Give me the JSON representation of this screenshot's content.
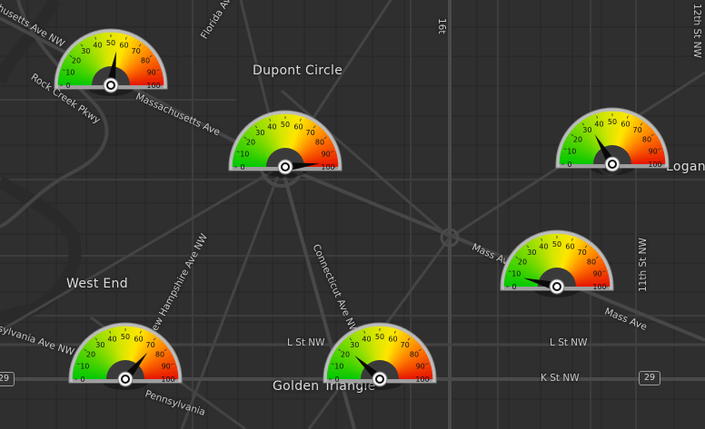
{
  "map": {
    "place_labels": [
      {
        "name": "place-dupont-circle",
        "text": "Dupont Circle"
      },
      {
        "name": "place-west-end",
        "text": "West End"
      },
      {
        "name": "place-golden-triangle",
        "text": "Golden Triangle"
      },
      {
        "name": "place-logan",
        "text": "Logan"
      }
    ],
    "street_labels": [
      {
        "name": "street-massachusetts-ave-nw-west",
        "text": "husetts Ave NW"
      },
      {
        "name": "street-rock-creek-pkwy",
        "text": "Rock Creek Pkwy"
      },
      {
        "name": "street-massachusetts-ave",
        "text": "Massachusetts Ave"
      },
      {
        "name": "street-florida-ave",
        "text": "Florida Ave"
      },
      {
        "name": "street-16th",
        "text": "16t"
      },
      {
        "name": "street-new-hampshire-ave-nw",
        "text": "New Hampshire Ave NW"
      },
      {
        "name": "street-connecticut-ave-nw",
        "text": "Connecticut Ave NW"
      },
      {
        "name": "street-pennsylvania-ave-nw-west",
        "text": "sylvania Ave NW"
      },
      {
        "name": "street-pennsylvania-ave-nw-south",
        "text": "Pennsylvania"
      },
      {
        "name": "street-l-st-nw-1",
        "text": "L St NW"
      },
      {
        "name": "street-l-st-nw-2",
        "text": "L St NW"
      },
      {
        "name": "street-k-st-nw",
        "text": "K St NW"
      },
      {
        "name": "street-mass-ave-east",
        "text": "Mass Ave"
      },
      {
        "name": "street-mass-ave-east-2",
        "text": "Mass Ave"
      },
      {
        "name": "street-11th-st-nw",
        "text": "11th St NW"
      },
      {
        "name": "street-12th-st-nw",
        "text": "12th St NW"
      }
    ],
    "shields": [
      {
        "name": "route-shield-29-west",
        "text": "29"
      },
      {
        "name": "route-shield-29-east",
        "text": "29"
      }
    ]
  },
  "gauge_scale": {
    "min": 0,
    "max": 100,
    "ticks": [
      "0",
      "10",
      "20",
      "30",
      "40",
      "50",
      "60",
      "70",
      "80",
      "90",
      "100"
    ]
  },
  "gauges": [
    {
      "name": "gauge-rock-creek",
      "value": 55
    },
    {
      "name": "gauge-dupont-circle",
      "value": 97
    },
    {
      "name": "gauge-logan-circle",
      "value": 33
    },
    {
      "name": "gauge-mass-ave",
      "value": 8
    },
    {
      "name": "gauge-west-end",
      "value": 72
    },
    {
      "name": "gauge-golden-triangle",
      "value": 24
    }
  ]
}
